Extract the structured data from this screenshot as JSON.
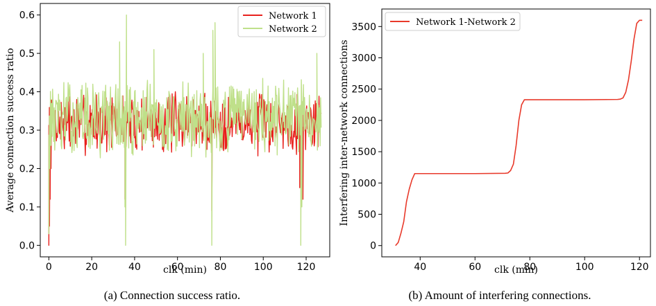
{
  "chart_data": [
    {
      "id": "a",
      "type": "line",
      "caption": "(a) Connection success ratio.",
      "xlabel": "clk (min)",
      "ylabel": "Average connection success ratio",
      "xlim": [
        -4,
        131
      ],
      "ylim": [
        -0.03,
        0.63
      ],
      "xticks": [
        0,
        20,
        40,
        60,
        80,
        100,
        120
      ],
      "yticks": [
        0.0,
        0.1,
        0.2,
        0.3,
        0.4,
        0.5,
        0.6
      ],
      "ytick_labels": [
        "0.0",
        "0.1",
        "0.2",
        "0.3",
        "0.4",
        "0.5",
        "0.6"
      ],
      "legend_position": "top-right",
      "series": [
        {
          "name": "Network 1",
          "color": "#e8201c",
          "noise": {
            "start_x": 0,
            "end_x": 127,
            "step": 0.25,
            "seed": 7,
            "mean": 0.32,
            "amplitude": 0.06,
            "min": 0.17,
            "max": 0.46
          },
          "x": [
            0,
            0.3,
            0.6,
            1.0,
            35.5,
            76.0,
            117.0,
            118.5
          ],
          "y": [
            0.0,
            0.05,
            0.12,
            0.2,
            0.12,
            0.09,
            0.15,
            0.12
          ]
        },
        {
          "name": "Network 2",
          "color": "#bfe08a",
          "noise": {
            "start_x": 0,
            "end_x": 127,
            "step": 0.25,
            "seed": 13,
            "mean": 0.33,
            "amplitude": 0.075,
            "min": 0.12,
            "max": 0.5
          },
          "x": [
            0,
            0.5,
            1.0,
            33.0,
            35.5,
            35.8,
            36.2,
            49.0,
            72.0,
            76.0,
            76.5,
            77.5,
            117.5,
            118.0,
            125.0
          ],
          "y": [
            0.03,
            0.2,
            0.3,
            0.53,
            0.1,
            0.0,
            0.6,
            0.51,
            0.5,
            0.0,
            0.56,
            0.58,
            0.0,
            0.1,
            0.5
          ]
        }
      ]
    },
    {
      "id": "b",
      "type": "line",
      "caption": "(b) Amount of interfering connections.",
      "xlabel": "clk (min)",
      "ylabel": "Interfering inter-network connections",
      "xlim": [
        26,
        124
      ],
      "ylim": [
        -180,
        3780
      ],
      "xticks": [
        40,
        60,
        80,
        100,
        120
      ],
      "yticks": [
        0,
        500,
        1000,
        1500,
        2000,
        2500,
        3000,
        3500
      ],
      "legend_position": "top-left",
      "series": [
        {
          "name": "Network 1-Network 2",
          "color": "#e8392a",
          "x": [
            31,
            32,
            33,
            34,
            35,
            36,
            37,
            38,
            40,
            60,
            71,
            72,
            73,
            74,
            75,
            76,
            77,
            78,
            80,
            100,
            112,
            113,
            114,
            115,
            116,
            117,
            118,
            119,
            120,
            121
          ],
          "y": [
            0,
            50,
            200,
            380,
            700,
            900,
            1050,
            1150,
            1150,
            1150,
            1155,
            1160,
            1200,
            1300,
            1600,
            2000,
            2250,
            2330,
            2330,
            2330,
            2335,
            2340,
            2360,
            2450,
            2650,
            2950,
            3300,
            3550,
            3600,
            3600
          ]
        }
      ]
    }
  ]
}
